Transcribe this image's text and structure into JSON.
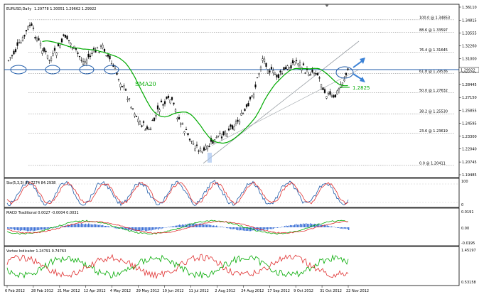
{
  "main_panel": {
    "title": "EURUSD,Daily",
    "ohlc": "1.29778 1.30051 1.29662 1.29922",
    "sma_label": "SMA20",
    "level_label": "1.2825",
    "price_axis": [
      "1.36110",
      "1.34815",
      "1.33555",
      "1.32260",
      "1.31000",
      "1.29705",
      "1.28445",
      "1.27150",
      "1.25855",
      "1.24595",
      "1.23300",
      "1.22040",
      "1.20745",
      "1.19485"
    ],
    "current_price": "1.29922",
    "fibonacci_levels": [
      {
        "label": "100.0 @ 1.34853",
        "price": 1.34853
      },
      {
        "label": "88.6 @ 1.33597",
        "price": 1.33597
      },
      {
        "label": "76.4 @ 1.31645",
        "price": 1.31645
      },
      {
        "label": "61.8 @ 1.29536",
        "price": 1.29536
      },
      {
        "label": "50.0 @ 1.27632",
        "price": 1.27632
      },
      {
        "label": "38.2 @ 1.25530",
        "price": 1.2553
      },
      {
        "label": "23.6 @ 1.23619",
        "price": 1.23619
      },
      {
        "label": "0.0 @ 1.20411",
        "price": 1.20411
      }
    ],
    "colors": {
      "sma": "#00aa00",
      "trendline": "#9aa0a6",
      "horizontal_line": "#1e5aa8",
      "arrow": "#3b82d6",
      "candle": "#000000",
      "fib": "#555555"
    }
  },
  "stochastic_panel": {
    "title": "Sto(5,3,3) 86.7274 84.2938",
    "axis": [
      "100",
      "0"
    ],
    "colors": {
      "main": "#1e5aa8",
      "signal": "#e03030"
    }
  },
  "macd_panel": {
    "title": "MACD Traditional 0.0027 -0.0004 0.0031",
    "axis": [
      "0.0191",
      "0.00",
      "-0.0195"
    ],
    "colors": {
      "histogram": "#3b6fd6",
      "macd": "#00aa00",
      "signal": "#e03030"
    }
  },
  "vortex_panel": {
    "title": "Vortex Indicator 1.24791 0.74763",
    "axis": [
      "1.45197",
      "0.53158"
    ],
    "colors": {
      "plus": "#00aa00",
      "minus": "#e03030"
    }
  },
  "date_axis": [
    "6 Feb 2012",
    "28 Feb 2012",
    "21 Mar 2012",
    "12 Apr 2012",
    "4 May 2012",
    "29 May 2012",
    "19 Jun 2012",
    "11 Jul 2012",
    "2 Aug 2012",
    "24 Aug 2012",
    "17 Sep 2012",
    "9 Oct 2012",
    "31 Oct 2012",
    "22 Nov 2012"
  ]
}
